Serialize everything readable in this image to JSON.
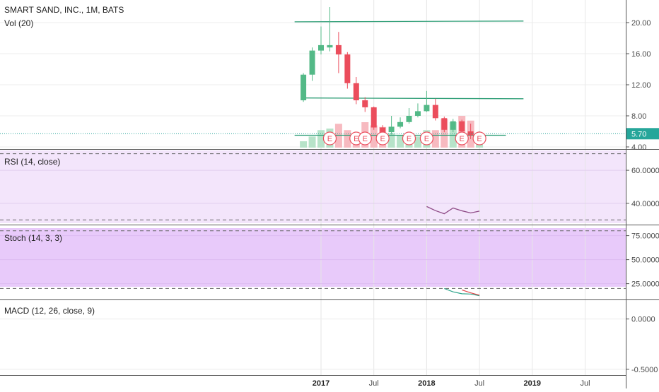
{
  "header": {
    "title": "SMART SAND, INC., 1M, BATS",
    "volume_label": "Vol (20)"
  },
  "colors": {
    "up": "#53b987",
    "down": "#eb4d5c",
    "vol_up": "#b7e3c9",
    "vol_down": "#f7bac0",
    "level_line": "#2e9e76",
    "last_price": "#26a69a",
    "rsi_bg": "#f3e5fb",
    "rsi_line": "#8e4a86",
    "stoch_bg": "#e8cafa",
    "stoch_k": "#2ba38a",
    "stoch_d": "#e0464a"
  },
  "chart_data": [
    {
      "type": "candlestick",
      "title": "SMART SAND, INC., 1M, BATS",
      "ylim": [
        4,
        22
      ],
      "yticks": [
        "4.00",
        "8.00",
        "12.00",
        "16.00",
        "20.00"
      ],
      "last_price_label": "5.70",
      "x_labels": [
        "2017",
        "Jul",
        "2018",
        "Jul",
        "2019",
        "Jul"
      ],
      "candles": [
        {
          "date": "2016-11",
          "open": 10.0,
          "high": 13.5,
          "low": 9.8,
          "close": 13.3
        },
        {
          "date": "2016-12",
          "open": 13.3,
          "high": 16.8,
          "low": 12.5,
          "close": 16.4
        },
        {
          "date": "2017-01",
          "open": 16.4,
          "high": 19.5,
          "low": 15.9,
          "close": 17.1
        },
        {
          "date": "2017-02",
          "open": 16.8,
          "high": 22.0,
          "low": 16.3,
          "close": 17.1
        },
        {
          "date": "2017-03",
          "open": 17.1,
          "high": 18.8,
          "low": 13.5,
          "close": 15.9
        },
        {
          "date": "2017-04",
          "open": 15.9,
          "high": 16.2,
          "low": 11.5,
          "close": 12.2
        },
        {
          "date": "2017-05",
          "open": 12.2,
          "high": 13.0,
          "low": 9.5,
          "close": 10.0
        },
        {
          "date": "2017-06",
          "open": 10.0,
          "high": 10.4,
          "low": 8.5,
          "close": 9.1
        },
        {
          "date": "2017-07",
          "open": 9.1,
          "high": 9.2,
          "low": 6.2,
          "close": 6.5
        },
        {
          "date": "2017-08",
          "open": 6.5,
          "high": 6.8,
          "low": 5.1,
          "close": 5.9
        },
        {
          "date": "2017-09",
          "open": 5.9,
          "high": 8.0,
          "low": 5.6,
          "close": 6.6
        },
        {
          "date": "2017-10",
          "open": 6.6,
          "high": 7.8,
          "low": 6.4,
          "close": 7.2
        },
        {
          "date": "2017-11",
          "open": 7.2,
          "high": 9.0,
          "low": 7.0,
          "close": 8.0
        },
        {
          "date": "2017-12",
          "open": 8.0,
          "high": 9.6,
          "low": 7.8,
          "close": 8.6
        },
        {
          "date": "2018-01",
          "open": 8.6,
          "high": 11.2,
          "low": 8.5,
          "close": 9.4
        },
        {
          "date": "2018-02",
          "open": 9.4,
          "high": 10.2,
          "low": 7.4,
          "close": 7.7
        },
        {
          "date": "2018-03",
          "open": 7.7,
          "high": 7.9,
          "low": 5.9,
          "close": 6.2
        },
        {
          "date": "2018-04",
          "open": 6.2,
          "high": 7.6,
          "low": 5.9,
          "close": 7.3
        },
        {
          "date": "2018-05",
          "open": 7.3,
          "high": 7.5,
          "low": 5.6,
          "close": 6.0
        },
        {
          "date": "2018-06",
          "open": 6.0,
          "high": 7.0,
          "low": 5.0,
          "close": 5.5
        },
        {
          "date": "2018-07",
          "open": 5.5,
          "high": 6.0,
          "low": 5.3,
          "close": 5.7
        }
      ],
      "volume_relative": [
        0.2,
        0.35,
        0.55,
        0.6,
        0.75,
        0.55,
        0.45,
        0.8,
        0.7,
        0.65,
        0.45,
        0.4,
        0.3,
        0.35,
        0.55,
        0.55,
        0.9,
        0.8,
        1.0,
        0.85,
        0.3
      ],
      "earnings_markers": [
        "2017-02",
        "2017-05",
        "2017-06",
        "2017-08",
        "2017-11",
        "2018-01",
        "2018-05",
        "2018-07"
      ],
      "earnings_label": "E",
      "levels": [
        {
          "from": "2016-10",
          "to": "2018-12",
          "start": 20.1,
          "end": 20.2
        },
        {
          "from": "2016-11",
          "to": "2018-12",
          "start": 10.3,
          "end": 10.2
        },
        {
          "from": "2016-10",
          "to": "2018-10",
          "start": 5.5,
          "end": 5.5
        }
      ]
    },
    {
      "type": "line",
      "title": "RSI (14, close)",
      "ylim": [
        28,
        72
      ],
      "yticks": [
        "40.0000",
        "60.0000"
      ],
      "guides": [
        70,
        30
      ],
      "x": [
        "2018-01",
        "2018-02",
        "2018-03",
        "2018-04",
        "2018-05",
        "2018-06",
        "2018-07"
      ],
      "values": [
        38.1,
        35.6,
        33.7,
        37.2,
        35.5,
        34.2,
        35.3
      ]
    },
    {
      "type": "line",
      "title": "Stoch (14, 3, 3)",
      "ylim": [
        10,
        85
      ],
      "yticks": [
        "25.0000",
        "50.0000",
        "75.0000"
      ],
      "guides": [
        80,
        20
      ],
      "series": [
        {
          "x": [
            "2018-03",
            "2018-04",
            "2018-05",
            "2018-06",
            "2018-07"
          ],
          "values": [
            20.0,
            16.5,
            14.5,
            14.2,
            12.5
          ]
        },
        {
          "x": [
            "2018-05",
            "2018-06",
            "2018-07"
          ],
          "values": [
            18.5,
            15.5,
            13.0
          ]
        }
      ]
    },
    {
      "type": "line",
      "title": "MACD (12, 26, close, 9)",
      "ylim": [
        -0.55,
        0.18
      ],
      "yticks": [
        "0.0000",
        "-0.5000"
      ],
      "values": []
    }
  ]
}
